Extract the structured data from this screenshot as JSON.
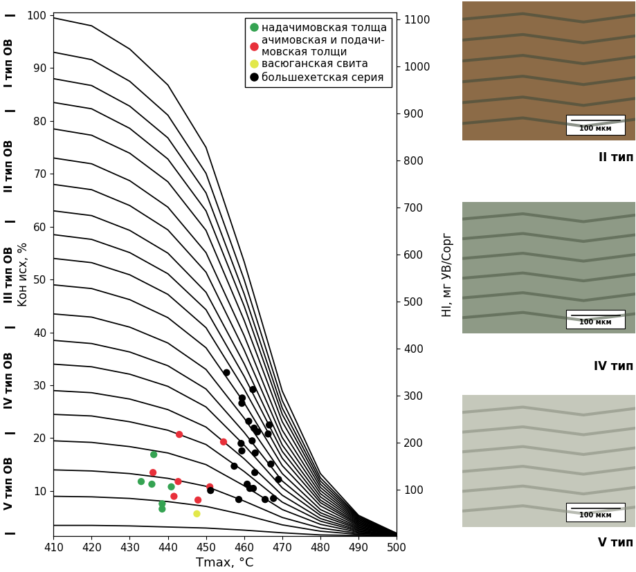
{
  "chart_data": {
    "type": "scatter",
    "xlabel": "Tmax, °C",
    "ylabel": "Kон исх, %",
    "y2label": "HI, мг УВ/Cорг",
    "xlim": [
      410,
      500
    ],
    "xticks": [
      410,
      420,
      430,
      440,
      450,
      460,
      470,
      480,
      490,
      500
    ],
    "ylim": [
      1.5,
      100.5
    ],
    "yticks": [
      10,
      20,
      30,
      40,
      50,
      60,
      70,
      80,
      90,
      100
    ],
    "y2lim": [
      1.5,
      1115
    ],
    "y2ticks": [
      100,
      200,
      300,
      400,
      500,
      600,
      700,
      800,
      900,
      1000,
      1100
    ],
    "legend": "upper right",
    "series": [
      {
        "name": "надачимовская толща",
        "color": "#35a352",
        "marker": "o",
        "x": [
          436.3,
          433.0,
          435.8,
          440.9,
          438.5,
          438.5
        ],
        "values": [
          16.9,
          11.8,
          11.3,
          10.8,
          7.6,
          6.6
        ]
      },
      {
        "name": "ачимовская и подачи-\nмовская толщи",
        "color": "#e8303a",
        "marker": "o",
        "x": [
          443.0,
          454.6,
          436.1,
          442.7,
          451.0,
          441.6,
          447.9
        ],
        "values": [
          20.7,
          19.3,
          13.5,
          11.8,
          10.8,
          9.0,
          8.3
        ]
      },
      {
        "name": "васюганская свита",
        "color": "#e2e84a",
        "marker": "o",
        "x": [
          447.6
        ],
        "values": [
          5.7
        ]
      },
      {
        "name": "большехетская серия",
        "color": "#000000",
        "marker": "o",
        "x": [
          455.4,
          459.5,
          459.4,
          462.3,
          461.2,
          462.6,
          463.5,
          462.1,
          459.2,
          459.4,
          466.6,
          466.3,
          462.9,
          467.0,
          457.4,
          462.8,
          460.8,
          462.4,
          461.5,
          469.0,
          451.2,
          458.6,
          465.5,
          467.7
        ],
        "values": [
          32.4,
          27.6,
          26.6,
          29.2,
          23.2,
          21.9,
          21.2,
          19.5,
          19.0,
          17.6,
          22.5,
          20.8,
          17.2,
          15.1,
          14.7,
          13.5,
          11.3,
          10.5,
          10.5,
          12.2,
          10.1,
          8.4,
          8.4,
          8.6
        ]
      }
    ],
    "curves": {
      "type": "line",
      "color": "#000000",
      "x": [
        410,
        420,
        430,
        440,
        450,
        460,
        470,
        480,
        490,
        500
      ],
      "lines": [
        [
          99.5,
          98.0,
          93.6,
          86.8,
          75.0,
          53.4,
          28.9,
          13.3,
          5.4,
          2.0
        ],
        [
          93.0,
          91.6,
          87.5,
          81.1,
          70.1,
          50.0,
          27.1,
          12.5,
          5.2,
          2.0
        ],
        [
          88.0,
          86.7,
          82.8,
          76.8,
          66.4,
          47.3,
          25.7,
          11.9,
          5.0,
          1.9
        ],
        [
          83.5,
          82.3,
          78.6,
          72.8,
          63.0,
          45.0,
          24.5,
          11.3,
          4.8,
          1.9
        ],
        [
          78.5,
          77.3,
          73.9,
          68.5,
          59.3,
          42.3,
          23.1,
          10.7,
          4.6,
          1.9
        ],
        [
          73.0,
          71.9,
          68.7,
          63.7,
          55.1,
          39.4,
          21.5,
          10.1,
          4.4,
          1.9
        ],
        [
          68.0,
          67.0,
          64.0,
          59.4,
          51.4,
          36.7,
          20.1,
          9.5,
          4.2,
          1.8
        ],
        [
          63.0,
          62.1,
          59.3,
          55.0,
          47.6,
          34.1,
          18.7,
          8.9,
          4.0,
          1.8
        ],
        [
          58.5,
          57.6,
          55.1,
          51.1,
          44.3,
          31.7,
          17.5,
          8.3,
          3.8,
          1.8
        ],
        [
          54.0,
          53.2,
          50.9,
          47.2,
          40.9,
          29.3,
          16.2,
          7.8,
          3.6,
          1.8
        ],
        [
          49.0,
          48.3,
          46.2,
          42.8,
          37.1,
          26.7,
          14.8,
          7.2,
          3.4,
          1.7
        ],
        [
          43.5,
          42.9,
          41.0,
          38.0,
          33.0,
          23.8,
          13.3,
          6.5,
          3.2,
          1.7
        ],
        [
          38.5,
          37.9,
          36.3,
          33.7,
          29.3,
          21.1,
          11.9,
          5.9,
          3.0,
          1.7
        ],
        [
          34.0,
          33.5,
          32.1,
          29.8,
          25.9,
          18.7,
          10.6,
          5.4,
          2.8,
          1.7
        ],
        [
          29.0,
          28.6,
          27.4,
          25.4,
          22.1,
          16.1,
          9.2,
          4.8,
          2.6,
          1.6
        ],
        [
          24.5,
          24.2,
          23.1,
          21.5,
          18.8,
          13.7,
          7.9,
          4.3,
          2.4,
          1.6
        ],
        [
          19.5,
          19.2,
          18.4,
          17.2,
          15.0,
          11.0,
          6.5,
          3.7,
          2.2,
          1.6
        ],
        [
          14.0,
          13.8,
          13.3,
          12.4,
          10.9,
          8.1,
          5.0,
          3.0,
          2.0,
          1.6
        ],
        [
          9.0,
          8.9,
          8.6,
          8.0,
          7.1,
          5.5,
          3.6,
          2.4,
          1.8,
          1.5
        ],
        [
          3.5,
          3.5,
          3.4,
          3.2,
          3.0,
          2.6,
          2.1,
          1.7,
          1.6,
          1.5
        ]
      ]
    },
    "type_bands": [
      {
        "label": "I тип ОВ",
        "from": 82,
        "to": 100
      },
      {
        "label": "II тип ОВ",
        "from": 61,
        "to": 82
      },
      {
        "label": "III тип ОВ",
        "from": 41,
        "to": 61
      },
      {
        "label": "IV тип ОВ",
        "from": 21,
        "to": 41
      },
      {
        "label": "V тип ОВ",
        "from": 2,
        "to": 21
      }
    ],
    "micrographs": [
      {
        "label": "II тип",
        "scale": "100 мкм"
      },
      {
        "label": "IV тип",
        "scale": "100 мкм"
      },
      {
        "label": "V тип",
        "scale": "100 мкм"
      }
    ]
  }
}
